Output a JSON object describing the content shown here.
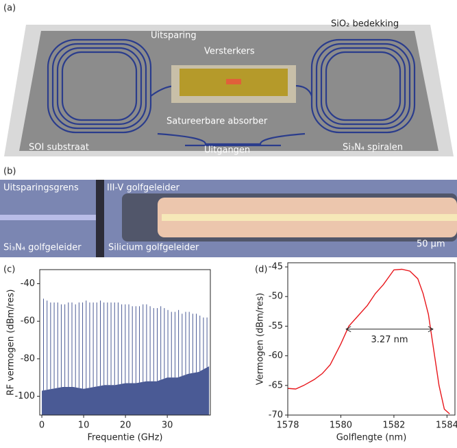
{
  "panels": {
    "a": {
      "label": "(a)",
      "texts": [
        "SiO₂ bedekking",
        "Uitsparing",
        "Versterkers",
        "Satureerbare absorber",
        "SOI substraat",
        "Uitgangen",
        "Si₃N₄ spiralen"
      ]
    },
    "b": {
      "label": "(b)",
      "texts": [
        "Uitsparingsgrens",
        "III-V golfgeleider",
        "Si₃N₄ golfgeleider",
        "Silicium golfgeleider",
        "50 μm"
      ]
    }
  },
  "chart_data": [
    {
      "type": "spectrum",
      "panel_label": "(c)",
      "xlabel": "Frequentie (GHz)",
      "ylabel": "RF vermogen (dBm/res)",
      "xlim": [
        -0.5,
        40.3
      ],
      "ylim": [
        -110,
        -32.5
      ],
      "xticks": [
        0,
        10,
        20,
        30
      ],
      "yticks": [
        -40,
        -60,
        -80,
        -100
      ],
      "color": "#4a5a95",
      "peaks": {
        "x": [
          0.4,
          1.25,
          2.1,
          2.95,
          3.8,
          4.65,
          5.5,
          6.35,
          7.2,
          8.05,
          8.9,
          9.75,
          10.6,
          11.45,
          12.3,
          13.15,
          14.0,
          14.85,
          15.7,
          16.55,
          17.4,
          18.25,
          19.1,
          19.95,
          20.8,
          21.65,
          22.5,
          23.35,
          24.2,
          25.05,
          25.9,
          26.75,
          27.6,
          28.45,
          29.3,
          30.15,
          31.0,
          31.85,
          32.7,
          33.55,
          34.4,
          35.25,
          36.1,
          36.95,
          37.8,
          38.65,
          39.5
        ],
        "values": [
          -48,
          -49,
          -50,
          -50,
          -50,
          -51,
          -51,
          -50,
          -50,
          -51,
          -50,
          -50,
          -49,
          -50,
          -50,
          -50,
          -49,
          -50,
          -50,
          -50,
          -50,
          -50,
          -51,
          -51,
          -51,
          -52,
          -52,
          -52,
          -51,
          -51,
          -52,
          -53,
          -53,
          -52,
          -53,
          -54,
          -55,
          -55,
          -54,
          -56,
          -55,
          -55,
          -56,
          -56,
          -57,
          -58,
          -58
        ]
      },
      "noise": {
        "x": [
          0,
          2.5,
          5,
          7.5,
          10,
          12.5,
          15,
          17.5,
          20,
          22.5,
          25,
          27.5,
          30,
          32.5,
          35,
          37.5,
          40
        ],
        "values": [
          -97,
          -96,
          -95,
          -95,
          -96,
          -95,
          -94,
          -94,
          -93,
          -93,
          -92,
          -92,
          -90,
          -90,
          -88,
          -87,
          -84
        ]
      }
    },
    {
      "type": "line",
      "panel_label": "(d)",
      "xlabel": "Golflengte (nm)",
      "ylabel": "Vermogen (dBm/res)",
      "xlim": [
        1578,
        1584.3
      ],
      "ylim": [
        -70,
        -44.3
      ],
      "xticks": [
        1578,
        1580,
        1582,
        1584
      ],
      "yticks": [
        -45,
        -50,
        -55,
        -60,
        -65,
        -70
      ],
      "color": "#e8161b",
      "x": [
        1578,
        1578.3,
        1578.6,
        1579,
        1579.3,
        1579.6,
        1580,
        1580.3,
        1580.6,
        1581,
        1581.3,
        1581.6,
        1582,
        1582.3,
        1582.6,
        1582.9,
        1583.1,
        1583.3,
        1583.5,
        1583.7,
        1583.9,
        1584.1
      ],
      "values": [
        -65.5,
        -65.6,
        -65,
        -64,
        -63,
        -61.5,
        -58,
        -55,
        -53.5,
        -51.5,
        -49.5,
        -48,
        -45.5,
        -45.4,
        -45.7,
        -47,
        -49.5,
        -53,
        -59,
        -65,
        -69,
        -69.8
      ],
      "annotation": {
        "label": "3.27 nm",
        "x": [
          1580.2,
          1583.47
        ],
        "y": -55.5
      }
    }
  ]
}
